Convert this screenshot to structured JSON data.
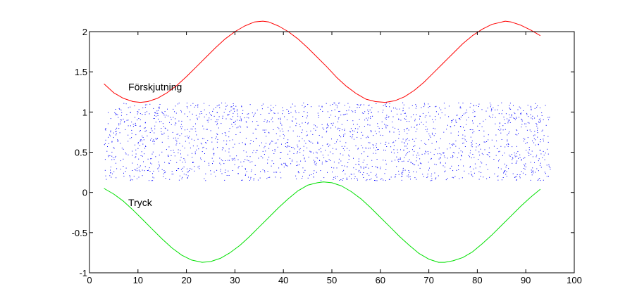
{
  "chart_data": {
    "type": "line",
    "xlim": [
      0,
      100
    ],
    "ylim": [
      -1,
      2
    ],
    "xticks": [
      "0",
      "10",
      "20",
      "30",
      "40",
      "50",
      "60",
      "70",
      "80",
      "90",
      "100"
    ],
    "yticks": [
      "-1",
      "-0.5",
      "0",
      "0.5",
      "1",
      "1.5",
      "2"
    ],
    "grid": false,
    "legend": "none",
    "annotations": [
      {
        "text": "Förskjutning",
        "x": 8,
        "y": 1.27
      },
      {
        "text": "Tryck",
        "x": 8,
        "y": -0.17
      }
    ],
    "series": [
      {
        "color": "#ff0000",
        "x": [
          3,
          5,
          7,
          9,
          10.5,
          12,
          14,
          16,
          18,
          20,
          22,
          24,
          26,
          28,
          30,
          32,
          34,
          35.75,
          37,
          39,
          41,
          43,
          45,
          47,
          49,
          51,
          53,
          55,
          57,
          59,
          61,
          63,
          65,
          67,
          69,
          71,
          73,
          75,
          77,
          79,
          81,
          83,
          85.75,
          87,
          89,
          91,
          93
        ],
        "y": [
          1.35,
          1.24,
          1.17,
          1.13,
          1.12,
          1.13,
          1.17,
          1.24,
          1.33,
          1.44,
          1.56,
          1.68,
          1.8,
          1.91,
          2.0,
          2.07,
          2.12,
          2.13,
          2.12,
          2.07,
          2.0,
          1.91,
          1.8,
          1.68,
          1.56,
          1.43,
          1.32,
          1.23,
          1.16,
          1.13,
          1.12,
          1.14,
          1.19,
          1.27,
          1.37,
          1.49,
          1.61,
          1.73,
          1.85,
          1.95,
          2.03,
          2.09,
          2.13,
          2.12,
          2.08,
          2.02,
          1.95
        ]
      },
      {
        "color": "#00e000",
        "x": [
          3,
          5,
          7,
          9,
          11,
          13,
          15,
          17,
          19,
          21,
          23.25,
          25,
          27,
          29,
          31,
          33,
          35,
          37,
          39,
          41,
          43,
          45,
          47,
          48.25,
          50,
          52,
          54,
          56,
          58,
          60,
          62,
          64,
          66,
          68,
          70,
          72,
          73.25,
          75,
          77,
          79,
          81,
          83,
          85,
          87,
          89,
          91,
          93
        ],
        "y": [
          0.05,
          -0.02,
          -0.11,
          -0.22,
          -0.34,
          -0.46,
          -0.58,
          -0.69,
          -0.78,
          -0.84,
          -0.87,
          -0.86,
          -0.82,
          -0.75,
          -0.66,
          -0.55,
          -0.43,
          -0.31,
          -0.19,
          -0.08,
          0.02,
          0.09,
          0.12,
          0.13,
          0.12,
          0.08,
          0.01,
          -0.08,
          -0.19,
          -0.31,
          -0.43,
          -0.55,
          -0.66,
          -0.76,
          -0.83,
          -0.87,
          -0.87,
          -0.85,
          -0.81,
          -0.74,
          -0.64,
          -0.53,
          -0.41,
          -0.29,
          -0.17,
          -0.06,
          0.04
        ]
      },
      {
        "type": "scatter",
        "color": "#0000ff",
        "points": 2000,
        "x_range": [
          3,
          95
        ],
        "y_range": [
          0.15,
          1.12
        ]
      }
    ]
  }
}
